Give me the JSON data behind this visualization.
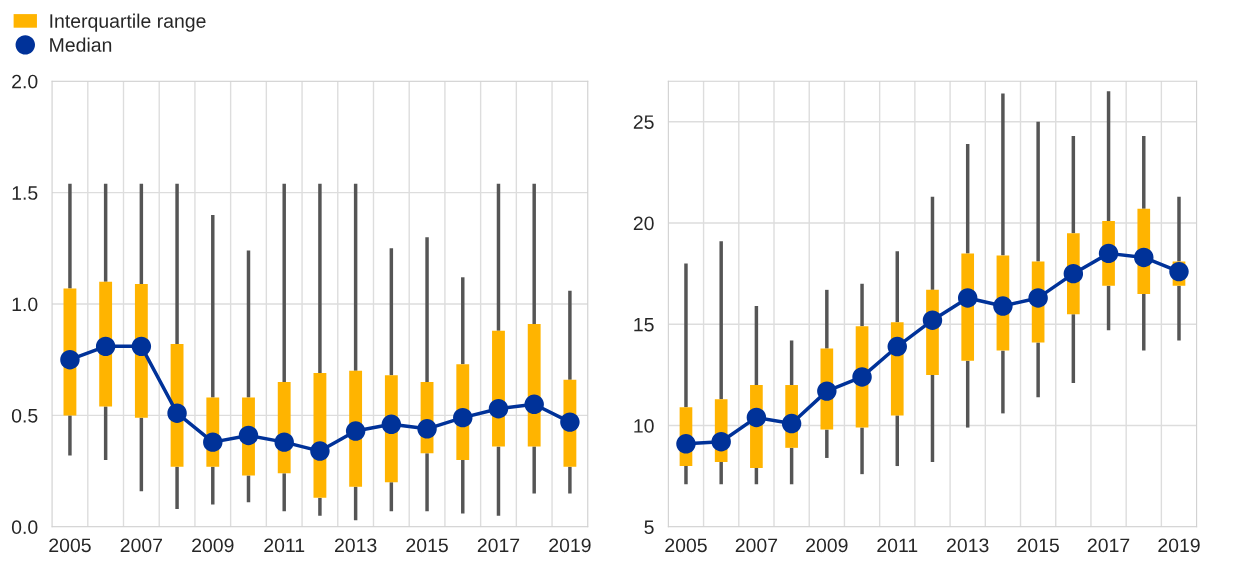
{
  "chart_data": [
    {
      "type": "box",
      "legend": "top left",
      "grid": true,
      "categories": [
        "2005",
        null,
        "2007",
        null,
        "2009",
        null,
        "2011",
        null,
        "2013",
        null,
        "2015",
        null,
        "2017",
        null,
        "2019"
      ],
      "ylim": [
        0,
        2
      ],
      "yticks": [
        {
          "value": 0,
          "label": "0.0"
        },
        {
          "value": 0.5,
          "label": "0.5"
        },
        {
          "value": 1,
          "label": "1.0"
        },
        {
          "value": 1.5,
          "label": "1.5"
        },
        {
          "value": 2,
          "label": "2.0"
        }
      ],
      "series": [
        {
          "name": "Interquartile range",
          "color": "#ffb400",
          "boxes": [
            {
              "low": 0.32,
              "q1": 0.5,
              "median": 0.75,
              "q3": 1.07,
              "high": 1.54
            },
            {
              "low": 0.3,
              "q1": 0.54,
              "median": 0.81,
              "q3": 1.1,
              "high": 1.54
            },
            {
              "low": 0.16,
              "q1": 0.49,
              "median": 0.81,
              "q3": 1.09,
              "high": 1.54
            },
            {
              "low": 0.08,
              "q1": 0.27,
              "median": 0.51,
              "q3": 0.82,
              "high": 1.54
            },
            {
              "low": 0.1,
              "q1": 0.27,
              "median": 0.38,
              "q3": 0.58,
              "high": 1.4
            },
            {
              "low": 0.11,
              "q1": 0.23,
              "median": 0.41,
              "q3": 0.58,
              "high": 1.24
            },
            {
              "low": 0.07,
              "q1": 0.24,
              "median": 0.38,
              "q3": 0.65,
              "high": 1.54
            },
            {
              "low": 0.05,
              "q1": 0.13,
              "median": 0.34,
              "q3": 0.69,
              "high": 1.54
            },
            {
              "low": 0.03,
              "q1": 0.18,
              "median": 0.43,
              "q3": 0.7,
              "high": 1.54
            },
            {
              "low": 0.07,
              "q1": 0.2,
              "median": 0.46,
              "q3": 0.68,
              "high": 1.25
            },
            {
              "low": 0.07,
              "q1": 0.33,
              "median": 0.44,
              "q3": 0.65,
              "high": 1.3
            },
            {
              "low": 0.06,
              "q1": 0.3,
              "median": 0.49,
              "q3": 0.73,
              "high": 1.12
            },
            {
              "low": 0.05,
              "q1": 0.36,
              "median": 0.53,
              "q3": 0.88,
              "high": 1.54
            },
            {
              "low": 0.15,
              "q1": 0.36,
              "median": 0.55,
              "q3": 0.91,
              "high": 1.54
            },
            {
              "low": 0.15,
              "q1": 0.27,
              "median": 0.47,
              "q3": 0.66,
              "high": 1.06
            }
          ]
        },
        {
          "name": "Median",
          "type": "line",
          "color": "#003299",
          "marker": "circle",
          "values": [
            0.75,
            0.81,
            0.81,
            0.51,
            0.38,
            0.41,
            0.38,
            0.34,
            0.43,
            0.46,
            0.44,
            0.49,
            0.53,
            0.55,
            0.47
          ]
        }
      ]
    },
    {
      "type": "box",
      "grid": true,
      "categories": [
        "2005",
        null,
        "2007",
        null,
        "2009",
        null,
        "2011",
        null,
        "2013",
        null,
        "2015",
        null,
        "2017",
        null,
        "2019"
      ],
      "ylim": [
        5,
        27
      ],
      "yticks": [
        5,
        10,
        15,
        20,
        25
      ],
      "series": [
        {
          "color": "#ffb400",
          "boxes": [
            {
              "low": 7.1,
              "q1": 8.0,
              "median": 9.1,
              "q3": 10.9,
              "high": 18.0
            },
            {
              "low": 7.1,
              "q1": 8.2,
              "median": 9.2,
              "q3": 11.3,
              "high": 19.1
            },
            {
              "low": 7.1,
              "q1": 7.9,
              "median": 10.4,
              "q3": 12.0,
              "high": 15.9
            },
            {
              "low": 7.1,
              "q1": 8.9,
              "median": 10.1,
              "q3": 12.0,
              "high": 14.2
            },
            {
              "low": 8.4,
              "q1": 9.8,
              "median": 11.7,
              "q3": 13.8,
              "high": 16.7
            },
            {
              "low": 7.6,
              "q1": 9.9,
              "median": 12.4,
              "q3": 14.9,
              "high": 17.0
            },
            {
              "low": 8.0,
              "q1": 10.5,
              "median": 13.9,
              "q3": 15.1,
              "high": 18.6
            },
            {
              "low": 8.2,
              "q1": 12.5,
              "median": 15.2,
              "q3": 16.7,
              "high": 21.3
            },
            {
              "low": 9.9,
              "q1": 13.2,
              "median": 16.3,
              "q3": 18.5,
              "high": 23.9
            },
            {
              "low": 10.6,
              "q1": 13.7,
              "median": 15.9,
              "q3": 18.4,
              "high": 26.4
            },
            {
              "low": 11.4,
              "q1": 14.1,
              "median": 16.3,
              "q3": 18.1,
              "high": 25.0
            },
            {
              "low": 12.1,
              "q1": 15.5,
              "median": 17.5,
              "q3": 19.5,
              "high": 24.3
            },
            {
              "low": 14.7,
              "q1": 16.9,
              "median": 18.5,
              "q3": 20.1,
              "high": 26.5
            },
            {
              "low": 13.7,
              "q1": 16.5,
              "median": 18.3,
              "q3": 20.7,
              "high": 24.3
            },
            {
              "low": 14.2,
              "q1": 16.9,
              "median": 17.6,
              "q3": 18.1,
              "high": 21.3
            }
          ]
        },
        {
          "type": "line",
          "color": "#003299",
          "marker": "circle",
          "values": [
            9.1,
            9.2,
            10.4,
            10.1,
            11.7,
            12.4,
            13.9,
            15.2,
            16.3,
            15.9,
            16.3,
            17.5,
            18.5,
            18.3,
            17.6
          ]
        }
      ]
    }
  ]
}
